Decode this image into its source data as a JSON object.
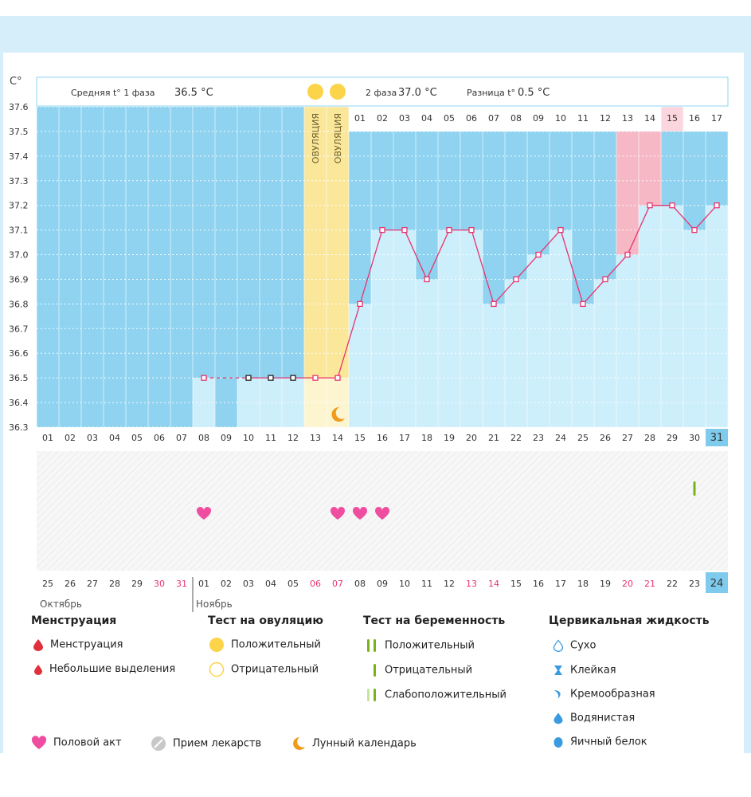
{
  "chart_data": {
    "type": "line",
    "title": "",
    "ylabel": "C°",
    "ylim": [
      36.3,
      37.6
    ],
    "yticks": [
      "37.6",
      "37.5",
      "37.4",
      "37.3",
      "37.2",
      "37.1",
      "37.0",
      "36.9",
      "36.8",
      "36.7",
      "36.6",
      "36.5",
      "36.4",
      "36.3"
    ],
    "x_cycle_days": [
      "01",
      "02",
      "03",
      "04",
      "05",
      "06",
      "07",
      "08",
      "09",
      "10",
      "11",
      "12",
      "13",
      "14",
      "15",
      "16",
      "17",
      "18",
      "19",
      "20",
      "21",
      "22",
      "23",
      "24",
      "25",
      "26",
      "27",
      "28",
      "29",
      "30",
      "31"
    ],
    "x_dates": [
      "25",
      "26",
      "27",
      "28",
      "29",
      "30",
      "31",
      "01",
      "02",
      "03",
      "04",
      "05",
      "06",
      "07",
      "08",
      "09",
      "10",
      "11",
      "12",
      "13",
      "14",
      "15",
      "16",
      "17",
      "18",
      "19",
      "20",
      "21",
      "22",
      "23",
      "24"
    ],
    "red_date_indices": [
      5,
      6,
      12,
      13,
      19,
      20,
      26,
      27
    ],
    "month_labels": [
      "Октябрь",
      "Ноябрь"
    ],
    "month_break_index": 7,
    "today_index": 30,
    "phase2_day_numbers": [
      "01",
      "02",
      "03",
      "04",
      "05",
      "06",
      "07",
      "08",
      "09",
      "10",
      "11",
      "12",
      "13",
      "14",
      "15",
      "16",
      "17"
    ],
    "phase2_highlight_indices": [
      13,
      14
    ],
    "temps": [
      null,
      null,
      null,
      null,
      null,
      null,
      null,
      36.5,
      null,
      36.5,
      36.5,
      36.5,
      36.5,
      36.5,
      36.8,
      37.1,
      37.1,
      36.9,
      37.1,
      37.1,
      36.8,
      36.9,
      37.0,
      37.1,
      36.8,
      36.9,
      37.0,
      37.2,
      37.2,
      37.1,
      37.2
    ],
    "temps_dark_marker_indices": [
      9,
      10,
      11
    ],
    "ovulation_day_indices": [
      12,
      13
    ],
    "ovulation_label": "ОВУЛЯЦИЯ",
    "coverline": 37.5,
    "stats": {
      "phase1_label": "Средняя t° 1 фаза",
      "phase1_value": "36.5 °C",
      "phase2_label": "2 фаза",
      "phase2_value": "37.0 °C",
      "diff_label": "Разница t°",
      "diff_value": "0.5 °C"
    },
    "moon_index": 13,
    "intercourse_indices": [
      7,
      13,
      14,
      15
    ],
    "pregnancy_test_negative_indices": [
      29
    ]
  },
  "legend": {
    "menstruation": {
      "title": "Менструация",
      "items": [
        "Менструация",
        "Небольшие выделения"
      ]
    },
    "ovulation_test": {
      "title": "Тест на овуляцию",
      "items": [
        "Положительный",
        "Отрицательный"
      ]
    },
    "pregnancy_test": {
      "title": "Тест на беременность",
      "items": [
        "Положительный",
        "Отрицательный",
        "Слабоположительный"
      ]
    },
    "cervical": {
      "title": "Цервикальная жидкость",
      "items": [
        "Сухо",
        "Клейкая",
        "Кремообразная",
        "Водянистая",
        "Яичный белок"
      ]
    },
    "bottom": {
      "intercourse": "Половой акт",
      "medicine": "Прием лекарств",
      "moon": "Лунный календарь"
    }
  },
  "colors": {
    "blue_bg": "#8fd3f0",
    "light_bar": "#cdeefb",
    "phase2_bg": "#a8ddf4",
    "ovulation": "#fbe79a",
    "pink": "#f7b8c6",
    "line": "#e8336e",
    "today": "#7fcbed",
    "red_text": "#e8336e"
  }
}
